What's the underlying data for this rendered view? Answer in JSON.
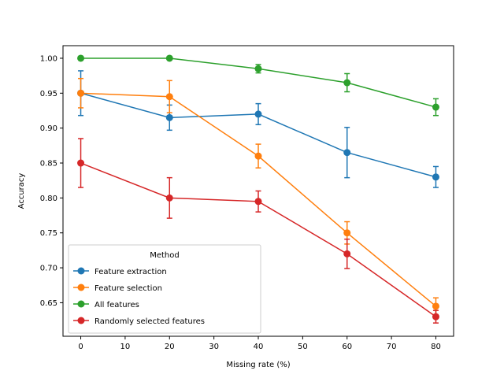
{
  "chart_data": {
    "type": "line",
    "title": "",
    "xlabel": "Missing rate (%)",
    "ylabel": "Accuracy",
    "x": [
      0,
      20,
      40,
      60,
      80
    ],
    "xlim": [
      -4,
      84
    ],
    "ylim": [
      0.602,
      1.018
    ],
    "xticks": [
      0,
      10,
      20,
      30,
      40,
      50,
      60,
      70,
      80
    ],
    "yticks": [
      0.65,
      0.7,
      0.75,
      0.8,
      0.85,
      0.9,
      0.95,
      1.0
    ],
    "grid": false,
    "legend": {
      "title": "Method",
      "placement": "lower-left"
    },
    "series": [
      {
        "name": "Feature extraction",
        "color": "#1f77b4",
        "values": [
          0.95,
          0.915,
          0.92,
          0.865,
          0.83
        ],
        "errors": [
          0.032,
          0.018,
          0.015,
          0.036,
          0.015
        ]
      },
      {
        "name": "Feature selection",
        "color": "#ff7f0e",
        "values": [
          0.95,
          0.945,
          0.86,
          0.75,
          0.645
        ],
        "errors": [
          0.021,
          0.023,
          0.017,
          0.016,
          0.012
        ]
      },
      {
        "name": "All features",
        "color": "#2ca02c",
        "values": [
          1.0,
          1.0,
          0.985,
          0.965,
          0.93
        ],
        "errors": [
          0.0,
          0.0,
          0.006,
          0.013,
          0.012
        ]
      },
      {
        "name": "Randomly selected features",
        "color": "#d62728",
        "values": [
          0.85,
          0.8,
          0.795,
          0.72,
          0.63
        ],
        "errors": [
          0.035,
          0.029,
          0.015,
          0.021,
          0.009
        ]
      }
    ]
  }
}
